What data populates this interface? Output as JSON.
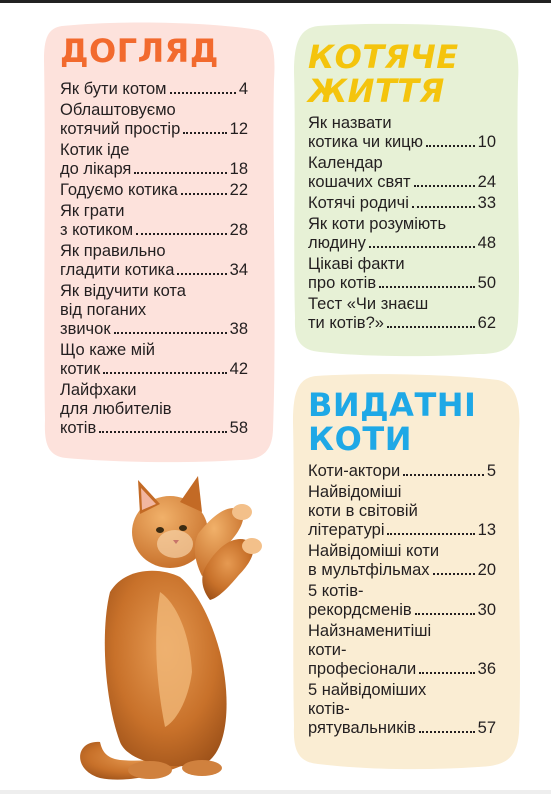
{
  "colors": {
    "care_bg": "#fde2dc",
    "care_title": "#f26a2e",
    "life_bg": "#e7f1d6",
    "life_title": "#f4c40d",
    "famous_bg": "#faedd3",
    "famous_title": "#1ea8e6",
    "text": "#231f20"
  },
  "sections": {
    "care": {
      "title": "ДОГЛЯД",
      "entries": [
        {
          "lines": [
            "Як бути котом"
          ],
          "page": "4"
        },
        {
          "lines": [
            "Облаштовуємо",
            "котячий простір"
          ],
          "page": "12"
        },
        {
          "lines": [
            "Котик іде",
            "до лікаря"
          ],
          "page": "18"
        },
        {
          "lines": [
            "Годуємо котика"
          ],
          "page": "22"
        },
        {
          "lines": [
            "Як грати",
            "з котиком"
          ],
          "page": "28"
        },
        {
          "lines": [
            "Як правильно",
            "гладити котика"
          ],
          "page": "34"
        },
        {
          "lines": [
            "Як відучити кота",
            "від поганих",
            "звичок"
          ],
          "page": "38"
        },
        {
          "lines": [
            "Що каже мій",
            "котик"
          ],
          "page": "42"
        },
        {
          "lines": [
            "Лайфхаки",
            "для любителів",
            "котів"
          ],
          "page": "58"
        }
      ]
    },
    "life": {
      "title_line1": "КОТЯЧЕ",
      "title_line2": "ЖИТТЯ",
      "entries": [
        {
          "lines": [
            "Як назвати",
            "котика чи кицю"
          ],
          "page": "10"
        },
        {
          "lines": [
            "Календар",
            "кошачих свят"
          ],
          "page": "24"
        },
        {
          "lines": [
            "Котячі родичі"
          ],
          "page": "33"
        },
        {
          "lines": [
            "Як коти розуміють",
            "людину"
          ],
          "page": "48"
        },
        {
          "lines": [
            "Цікаві факти",
            "про котів"
          ],
          "page": "50"
        },
        {
          "lines": [
            "Тест «Чи знаєш",
            "ти котів?»"
          ],
          "page": "62"
        }
      ]
    },
    "famous": {
      "title_line1": "ВИДАТНІ",
      "title_line2": "КОТИ",
      "entries": [
        {
          "lines": [
            "Коти-актори"
          ],
          "page": "5"
        },
        {
          "lines": [
            "Найвідоміші",
            "коти в світовій",
            "літературі"
          ],
          "page": "13"
        },
        {
          "lines": [
            "Найвідоміші коти",
            "в мультфільмах"
          ],
          "page": "20"
        },
        {
          "lines": [
            "5 котів-",
            "рекордсменів"
          ],
          "page": "30"
        },
        {
          "lines": [
            "Найзнаменитіші",
            "коти-",
            "професіонали"
          ],
          "page": "36"
        },
        {
          "lines": [
            "5 найвідоміших",
            "котів-",
            "рятувальників"
          ],
          "page": "57"
        }
      ]
    }
  }
}
